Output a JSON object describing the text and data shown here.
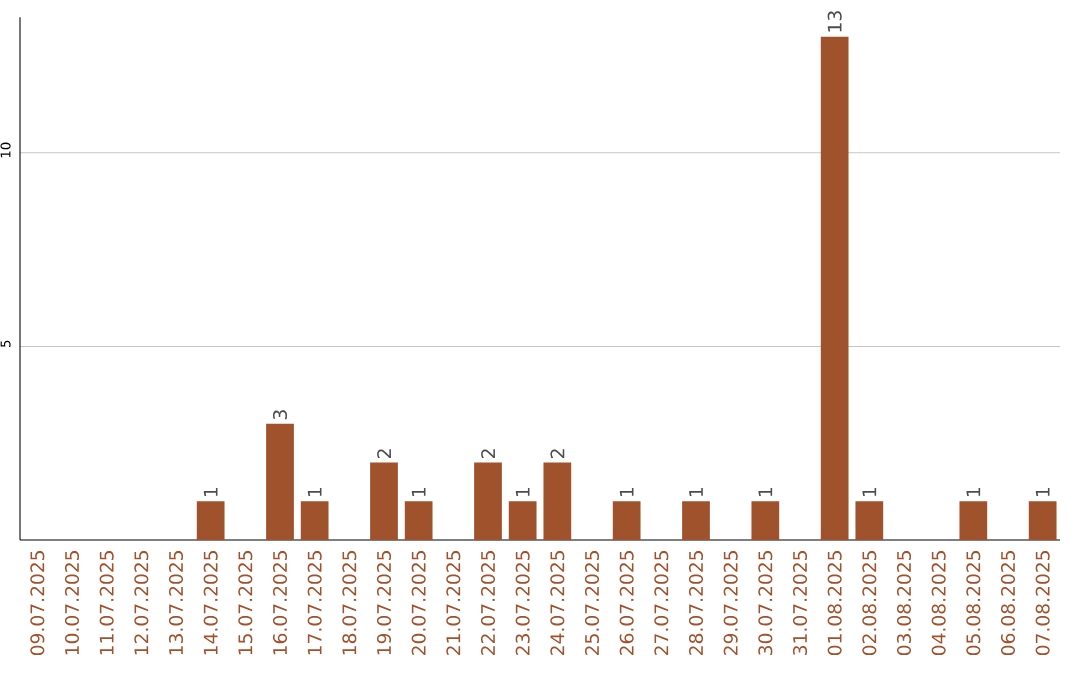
{
  "chart_data": {
    "type": "bar",
    "categories": [
      "09.07.2025",
      "10.07.2025",
      "11.07.2025",
      "12.07.2025",
      "13.07.2025",
      "14.07.2025",
      "15.07.2025",
      "16.07.2025",
      "17.07.2025",
      "18.07.2025",
      "19.07.2025",
      "20.07.2025",
      "21.07.2025",
      "22.07.2025",
      "23.07.2025",
      "24.07.2025",
      "25.07.2025",
      "26.07.2025",
      "27.07.2025",
      "28.07.2025",
      "29.07.2025",
      "30.07.2025",
      "31.07.2025",
      "01.08.2025",
      "02.08.2025",
      "03.08.2025",
      "04.08.2025",
      "05.08.2025",
      "06.08.2025",
      "07.08.2025"
    ],
    "values": [
      0,
      0,
      0,
      0,
      0,
      1,
      0,
      3,
      1,
      0,
      2,
      1,
      0,
      2,
      1,
      2,
      0,
      1,
      0,
      1,
      0,
      1,
      0,
      13,
      1,
      0,
      0,
      1,
      0,
      1
    ],
    "value_labels": [
      null,
      null,
      null,
      null,
      null,
      "1",
      null,
      "3",
      "1",
      null,
      "2",
      "1",
      null,
      "2",
      "1",
      "2",
      null,
      "1",
      null,
      "1",
      null,
      "1",
      null,
      "13",
      "1",
      null,
      null,
      "1",
      null,
      "1"
    ],
    "color": "#a0522d",
    "ylim": [
      0,
      13.5
    ],
    "yticks": [
      5,
      10
    ],
    "grid": "y"
  }
}
